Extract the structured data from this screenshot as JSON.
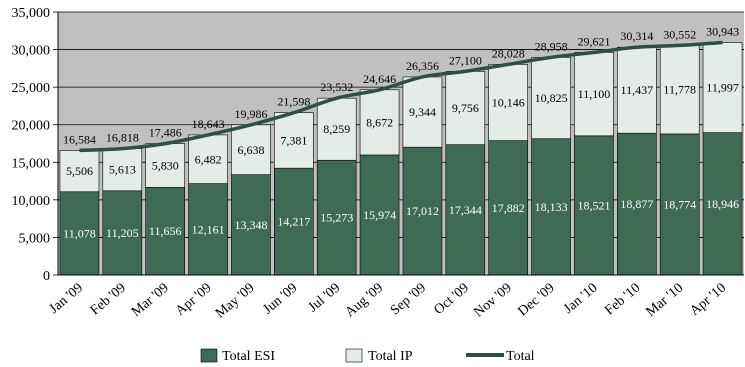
{
  "chart_data": {
    "type": "bar",
    "categories": [
      "Jan '09",
      "Feb '09",
      "Mar '09",
      "Apr '09",
      "May '09",
      "Jun '09",
      "Jul '09",
      "Aug '09",
      "Sep '09",
      "Oct '09",
      "Nov '09",
      "Dec '09",
      "Jan '10",
      "Feb '10",
      "Mar '10",
      "Apr '10"
    ],
    "series": [
      {
        "name": "Total ESI",
        "type": "bar",
        "color": "#3f6b55",
        "values": [
          11078,
          11205,
          11656,
          12161,
          13348,
          14217,
          15273,
          15974,
          17012,
          17344,
          17882,
          18133,
          18521,
          18877,
          18774,
          18946
        ]
      },
      {
        "name": "Total IP",
        "type": "bar",
        "color": "#e3ece6",
        "values": [
          5506,
          5613,
          5830,
          6482,
          6638,
          7381,
          8259,
          8672,
          9344,
          9756,
          10146,
          10825,
          11100,
          11437,
          11778,
          11997
        ]
      },
      {
        "name": "Total",
        "type": "line",
        "color": "#2f4f40",
        "values": [
          16584,
          16818,
          17486,
          18643,
          19986,
          21598,
          23532,
          24646,
          26356,
          27100,
          28028,
          28958,
          29621,
          30314,
          30552,
          30943
        ]
      }
    ],
    "stacked": true,
    "ylim": [
      0,
      35000
    ],
    "yticks": [
      0,
      5000,
      10000,
      15000,
      20000,
      25000,
      30000,
      35000
    ],
    "ytick_labels": [
      "0",
      "5,000",
      "10,000",
      "15,000",
      "20,000",
      "25,000",
      "30,000",
      "35,000"
    ],
    "grid": true,
    "plot_background": "#c0c0c0",
    "legend": "bottom",
    "title": "",
    "xlabel": "",
    "ylabel": ""
  }
}
